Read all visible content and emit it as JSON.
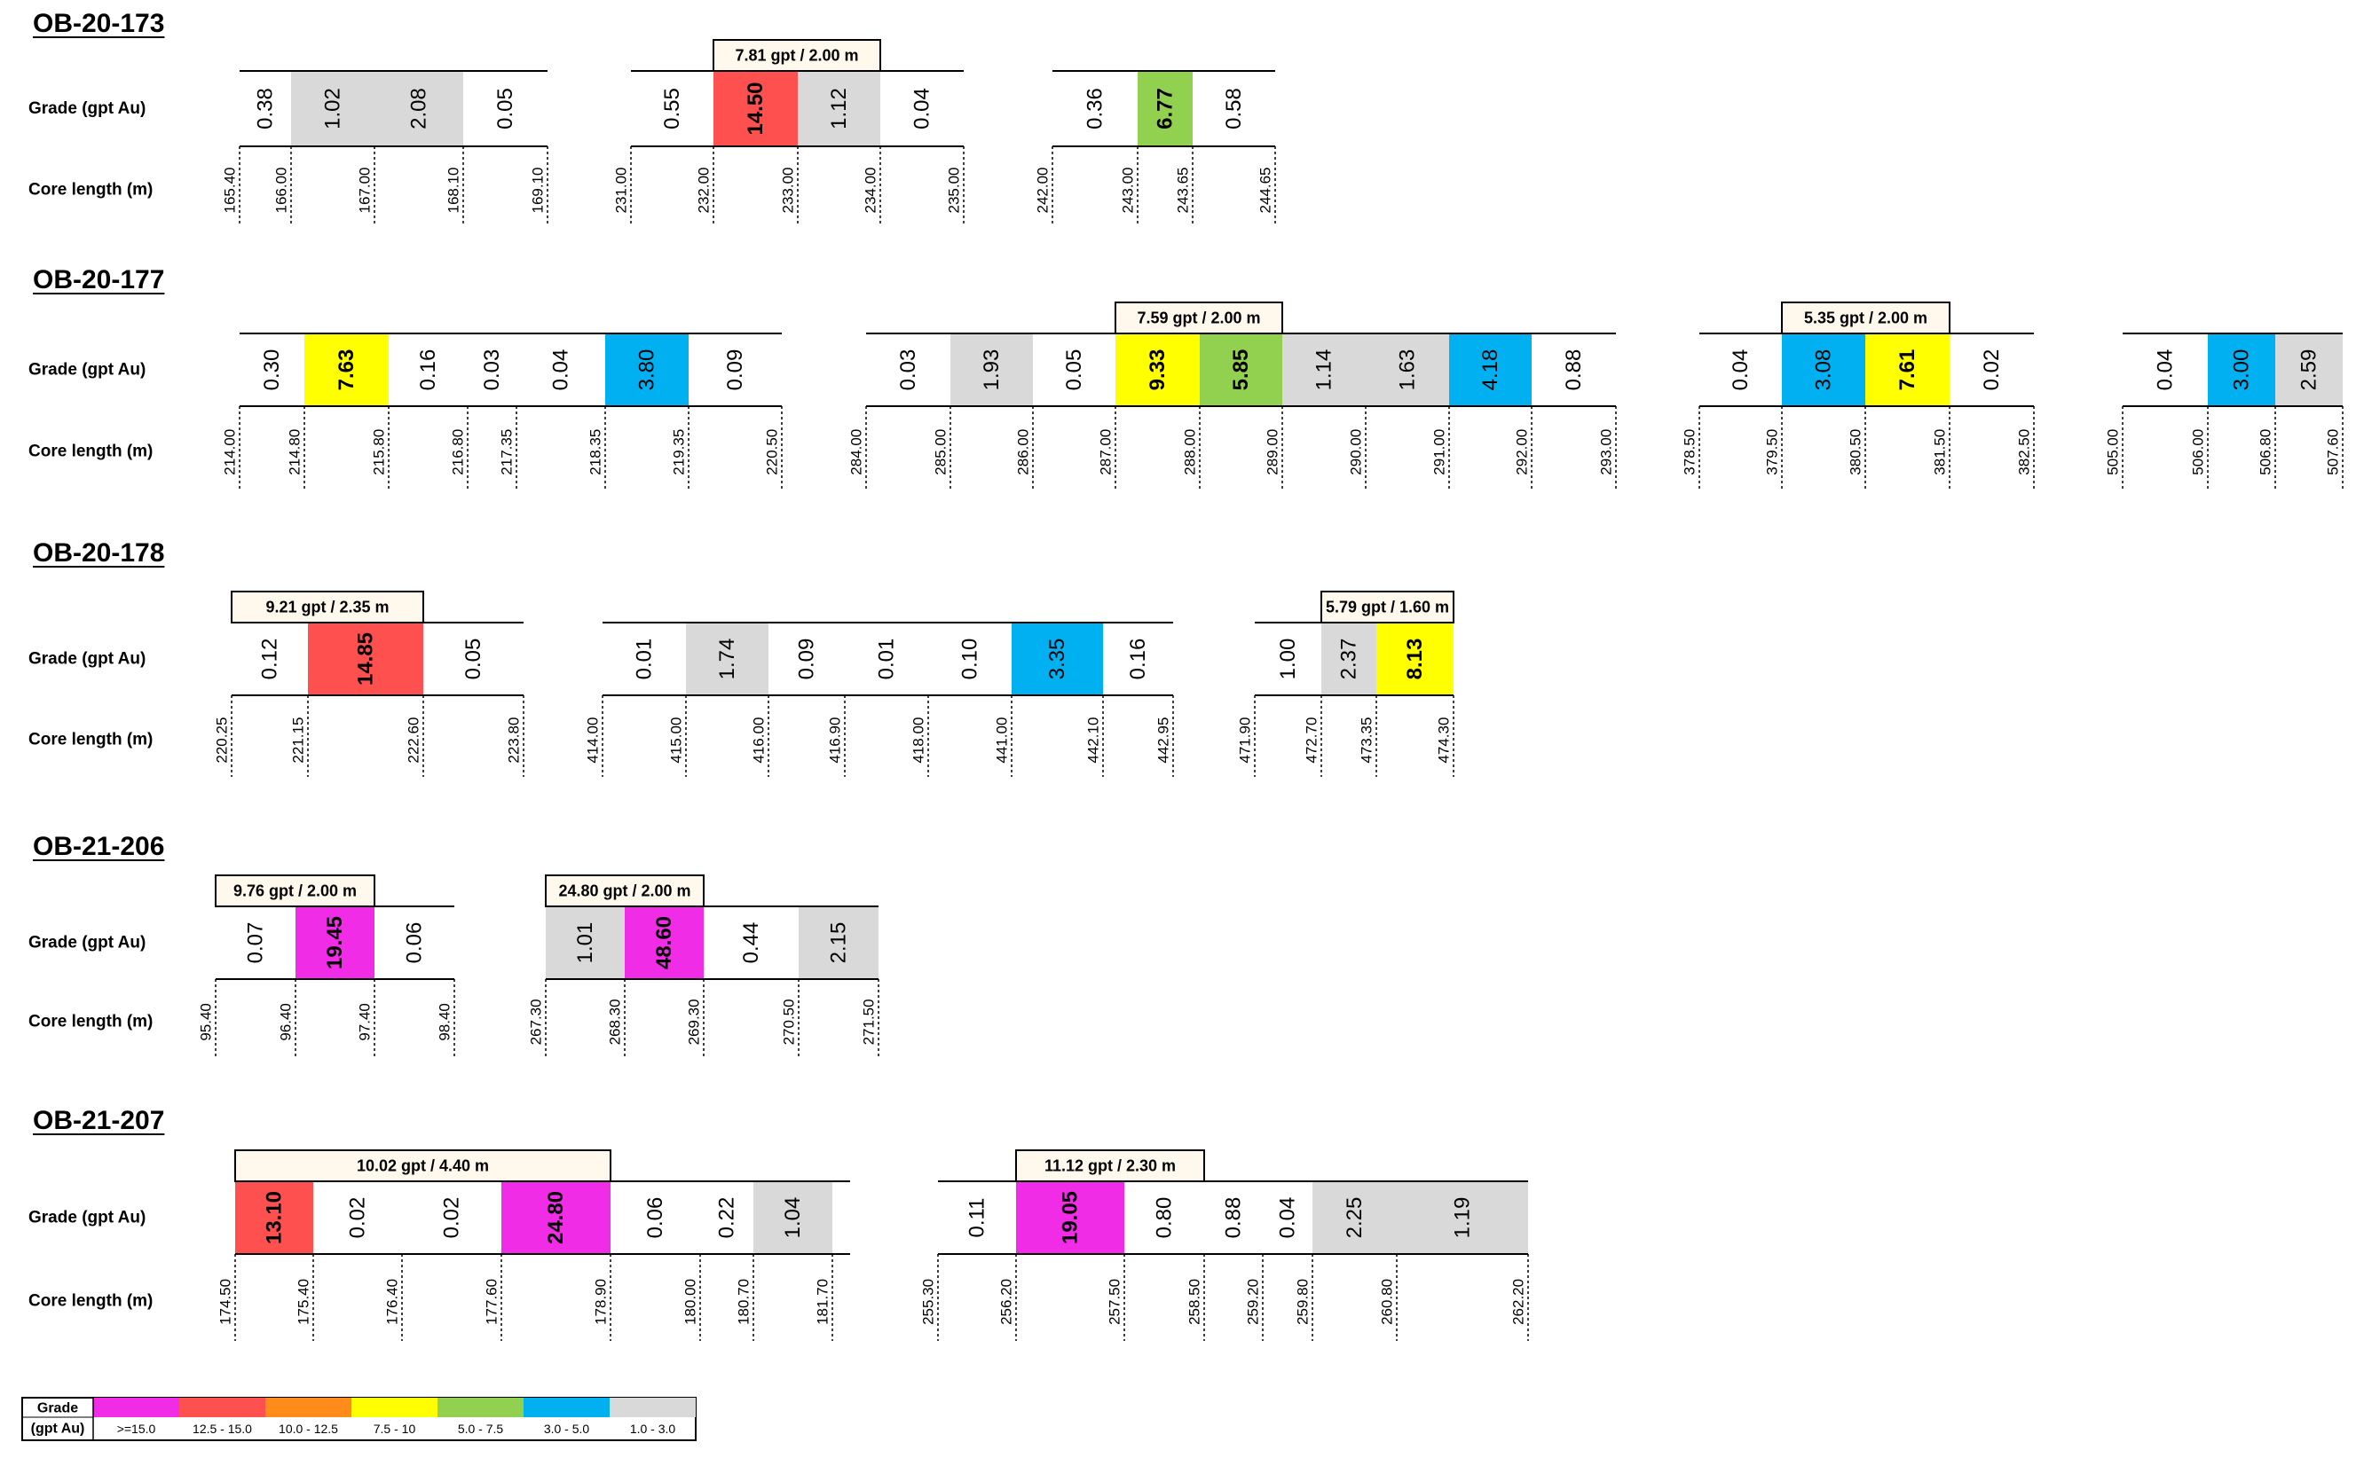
{
  "colors": {
    "magenta": "#F12CE6",
    "red": "#FF5050",
    "orange": "#FF8C1A",
    "yellow": "#FFFF00",
    "green": "#92D050",
    "blue": "#00B0F0",
    "grey": "#D9D9D9",
    "line": "#000000"
  },
  "legend": {
    "title_line1": "Grade",
    "title_line2": "(gpt Au)",
    "items": [
      {
        "label": ">=15.0",
        "color": "magenta"
      },
      {
        "label": "12.5 - 15.0",
        "color": "red"
      },
      {
        "label": "10.0 - 12.5",
        "color": "orange"
      },
      {
        "label": "7.5 - 10",
        "color": "yellow"
      },
      {
        "label": "5.0 - 7.5",
        "color": "green"
      },
      {
        "label": "3.0 - 5.0",
        "color": "blue"
      },
      {
        "label": "1.0 - 3.0",
        "color": "grey"
      }
    ]
  },
  "holes": [
    {
      "title": "OB-20-173",
      "grade_label": "Grade (gpt Au)",
      "core_label": "Core length (m)",
      "segments": [
        {
          "cells": [
            {
              "grade": "0.38"
            },
            {
              "grade": "1.02",
              "color": "grey"
            },
            {
              "grade": "2.08",
              "color": "grey"
            },
            {
              "grade": "0.05"
            }
          ],
          "depths": [
            "165.40",
            "166.00",
            "167.00",
            "168.10",
            "169.10"
          ]
        },
        {
          "interval": {
            "label": "7.81 gpt / 2.00 m",
            "from": 1,
            "to": 3
          },
          "cells": [
            {
              "grade": "0.55"
            },
            {
              "grade": "14.50",
              "color": "red"
            },
            {
              "grade": "1.12",
              "color": "grey"
            },
            {
              "grade": "0.04"
            }
          ],
          "depths": [
            "231.00",
            "232.00",
            "233.00",
            "234.00",
            "235.00"
          ]
        },
        {
          "cells": [
            {
              "grade": "0.36"
            },
            {
              "grade": "6.77",
              "color": "green"
            },
            {
              "grade": "0.58"
            }
          ],
          "depths": [
            "242.00",
            "243.00",
            "243.65",
            "244.65"
          ]
        }
      ]
    },
    {
      "title": "OB-20-177",
      "grade_label": "Grade (gpt Au)",
      "core_label": "Core length (m)",
      "segments": [
        {
          "cells": [
            {
              "grade": "0.30"
            },
            {
              "grade": "7.63",
              "color": "yellow"
            },
            {
              "grade": "0.16"
            },
            {
              "grade": "0.03"
            },
            {
              "grade": "0.04"
            },
            {
              "grade": "3.80",
              "color": "blue"
            },
            {
              "grade": "0.09"
            }
          ],
          "depths": [
            "214.00",
            "214.80",
            "215.80",
            "216.80",
            "217.35",
            "218.35",
            "219.35",
            "220.50"
          ]
        },
        {
          "interval": {
            "label": "7.59 gpt / 2.00 m",
            "from": 3,
            "to": 5
          },
          "cells": [
            {
              "grade": "0.03"
            },
            {
              "grade": "1.93",
              "color": "grey"
            },
            {
              "grade": "0.05"
            },
            {
              "grade": "9.33",
              "color": "yellow"
            },
            {
              "grade": "5.85",
              "color": "green"
            },
            {
              "grade": "1.14",
              "color": "grey"
            },
            {
              "grade": "1.63",
              "color": "grey"
            },
            {
              "grade": "4.18",
              "color": "blue"
            },
            {
              "grade": "0.88"
            }
          ],
          "depths": [
            "284.00",
            "285.00",
            "286.00",
            "287.00",
            "288.00",
            "289.00",
            "290.00",
            "291.00",
            "292.00",
            "293.00"
          ]
        },
        {
          "interval": {
            "label": "5.35 gpt / 2.00 m",
            "from": 1,
            "to": 3
          },
          "cells": [
            {
              "grade": "0.04"
            },
            {
              "grade": "3.08",
              "color": "blue"
            },
            {
              "grade": "7.61",
              "color": "yellow"
            },
            {
              "grade": "0.02"
            }
          ],
          "depths": [
            "378.50",
            "379.50",
            "380.50",
            "381.50",
            "382.50"
          ]
        },
        {
          "cells": [
            {
              "grade": "0.04"
            },
            {
              "grade": "3.00",
              "color": "blue"
            },
            {
              "grade": "2.59",
              "color": "grey"
            }
          ],
          "depths": [
            "505.00",
            "506.00",
            "506.80",
            "507.60"
          ]
        }
      ]
    },
    {
      "title": "OB-20-178",
      "grade_label": "Grade (gpt Au)",
      "core_label": "Core length (m)",
      "segments": [
        {
          "interval": {
            "label": "9.21 gpt / 2.35 m",
            "from": 0,
            "to": 2
          },
          "cells": [
            {
              "grade": "0.12"
            },
            {
              "grade": "14.85",
              "color": "red"
            },
            {
              "grade": "0.05"
            }
          ],
          "depths": [
            "220.25",
            "221.15",
            "222.60",
            "223.80"
          ]
        },
        {
          "cells": [
            {
              "grade": "0.01"
            },
            {
              "grade": "1.74",
              "color": "grey"
            },
            {
              "grade": "0.09"
            },
            {
              "grade": "0.01"
            },
            {
              "grade": "0.10"
            },
            {
              "grade": "3.35",
              "color": "blue"
            },
            {
              "grade": "0.16"
            }
          ],
          "depths": [
            "414.00",
            "415.00",
            "416.00",
            "416.90",
            "418.00",
            "441.00",
            "442.10",
            "442.95"
          ]
        },
        {
          "interval": {
            "label": "5.79 gpt / 1.60 m",
            "from": 1,
            "to": 3
          },
          "cells": [
            {
              "grade": "1.00"
            },
            {
              "grade": "2.37",
              "color": "grey"
            },
            {
              "grade": "8.13",
              "color": "yellow"
            }
          ],
          "depths": [
            "471.90",
            "472.70",
            "473.35",
            "474.30"
          ]
        }
      ]
    },
    {
      "title": "OB-21-206",
      "grade_label": "Grade (gpt Au)",
      "core_label": "Core length (m)",
      "segments": [
        {
          "interval": {
            "label": "9.76 gpt / 2.00 m",
            "from": 0,
            "to": 2
          },
          "cells": [
            {
              "grade": "0.07"
            },
            {
              "grade": "19.45",
              "color": "magenta"
            },
            {
              "grade": "0.06"
            }
          ],
          "depths": [
            "95.40",
            "96.40",
            "97.40",
            "98.40"
          ]
        },
        {
          "interval": {
            "label": "24.80 gpt / 2.00 m",
            "from": 0,
            "to": 2
          },
          "cells": [
            {
              "grade": "1.01",
              "color": "grey"
            },
            {
              "grade": "48.60",
              "color": "magenta"
            },
            {
              "grade": "0.44"
            },
            {
              "grade": "2.15",
              "color": "grey"
            }
          ],
          "depths": [
            "267.30",
            "268.30",
            "269.30",
            "270.50",
            "271.50"
          ]
        }
      ]
    },
    {
      "title": "OB-21-207",
      "grade_label": "Grade (gpt Au)",
      "core_label": "Core length (m)",
      "segments": [
        {
          "interval": {
            "label": "10.02 gpt / 4.40 m",
            "from": 0,
            "to": 4
          },
          "cells": [
            {
              "grade": "13.10",
              "color": "red"
            },
            {
              "grade": "0.02"
            },
            {
              "grade": "0.02"
            },
            {
              "grade": "24.80",
              "color": "magenta"
            },
            {
              "grade": "0.06"
            },
            {
              "grade": "0.22"
            },
            {
              "grade": "1.04",
              "color": "grey"
            }
          ],
          "depths": [
            "174.50",
            "175.40",
            "176.40",
            "177.60",
            "178.90",
            "180.00",
            "180.70",
            "181.70"
          ]
        },
        {
          "interval": {
            "label": "11.12 gpt / 2.30 m",
            "from": 1,
            "to": 3
          },
          "cells": [
            {
              "grade": "0.11"
            },
            {
              "grade": "19.05",
              "color": "magenta"
            },
            {
              "grade": "0.80"
            },
            {
              "grade": "0.88"
            },
            {
              "grade": "0.04"
            },
            {
              "grade": "2.25",
              "color": "grey"
            },
            {
              "grade": "1.19",
              "color": "grey"
            }
          ],
          "depths": [
            "255.30",
            "256.20",
            "257.50",
            "258.50",
            "259.20",
            "259.80",
            "260.80",
            "262.20"
          ]
        }
      ]
    }
  ]
}
